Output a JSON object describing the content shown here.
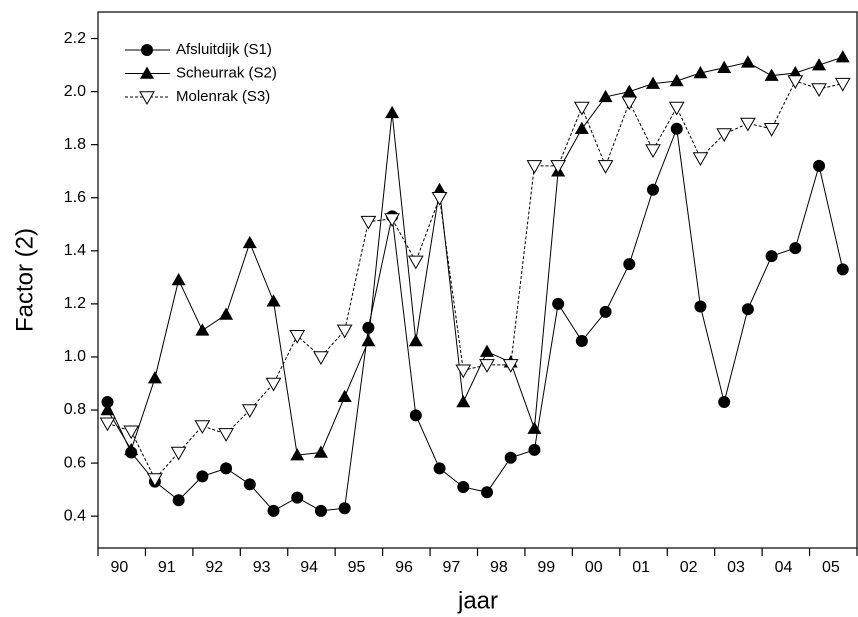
{
  "chart_data": {
    "type": "line",
    "x_label": "jaar",
    "y_label": "Factor (2)",
    "categories": [
      "90",
      null,
      "91",
      null,
      "92",
      null,
      "93",
      null,
      "94",
      null,
      "95",
      null,
      "96",
      null,
      "97",
      null,
      "98",
      null,
      "99",
      null,
      "00",
      null,
      "01",
      null,
      "02",
      null,
      "03",
      null,
      "04",
      null,
      "05",
      null
    ],
    "series": [
      {
        "name": "Afsluitdijk (S1)",
        "color": "#000000",
        "marker": "circle",
        "line_style": "solid",
        "values": [
          0.83,
          0.64,
          0.53,
          0.46,
          0.55,
          0.58,
          0.52,
          0.42,
          0.47,
          0.42,
          0.43,
          1.11,
          1.53,
          0.78,
          0.58,
          0.51,
          0.49,
          0.62,
          0.65,
          1.2,
          1.06,
          1.17,
          1.35,
          1.63,
          1.86,
          1.19,
          0.83,
          1.18,
          1.38,
          1.41,
          1.72,
          1.33
        ]
      },
      {
        "name": "Scheurrak (S2)",
        "color": "#000000",
        "marker": "triangle-up",
        "line_style": "solid",
        "values": [
          0.8,
          0.65,
          0.92,
          1.29,
          1.1,
          1.16,
          1.43,
          1.21,
          0.63,
          0.64,
          0.85,
          1.06,
          1.92,
          1.06,
          1.63,
          0.83,
          1.02,
          0.98,
          0.73,
          1.7,
          1.86,
          1.98,
          2.0,
          2.03,
          2.04,
          2.07,
          2.09,
          2.11,
          2.06,
          2.07,
          2.1,
          2.13
        ]
      },
      {
        "name": "Molenrak (S3)",
        "color": "#000000",
        "marker": "triangle-down-open",
        "line_style": "dashed",
        "values": [
          0.75,
          0.72,
          0.54,
          0.64,
          0.74,
          0.71,
          0.8,
          0.9,
          1.08,
          1.0,
          1.1,
          1.51,
          1.52,
          1.36,
          1.6,
          0.95,
          0.97,
          0.97,
          1.72,
          1.72,
          1.94,
          1.72,
          1.96,
          1.78,
          1.94,
          1.75,
          1.84,
          1.88,
          1.86,
          2.04,
          2.01,
          2.03
        ]
      }
    ],
    "ylim": [
      0.28,
      2.3
    ],
    "yticks": [
      0.4,
      0.6,
      0.8,
      {
        "value": 1.0,
        "label": "1.0"
      },
      1.2,
      1.4,
      1.6,
      1.8,
      {
        "value": 2.0,
        "label": "2.0"
      },
      2.2
    ],
    "legend": "upper-left"
  }
}
